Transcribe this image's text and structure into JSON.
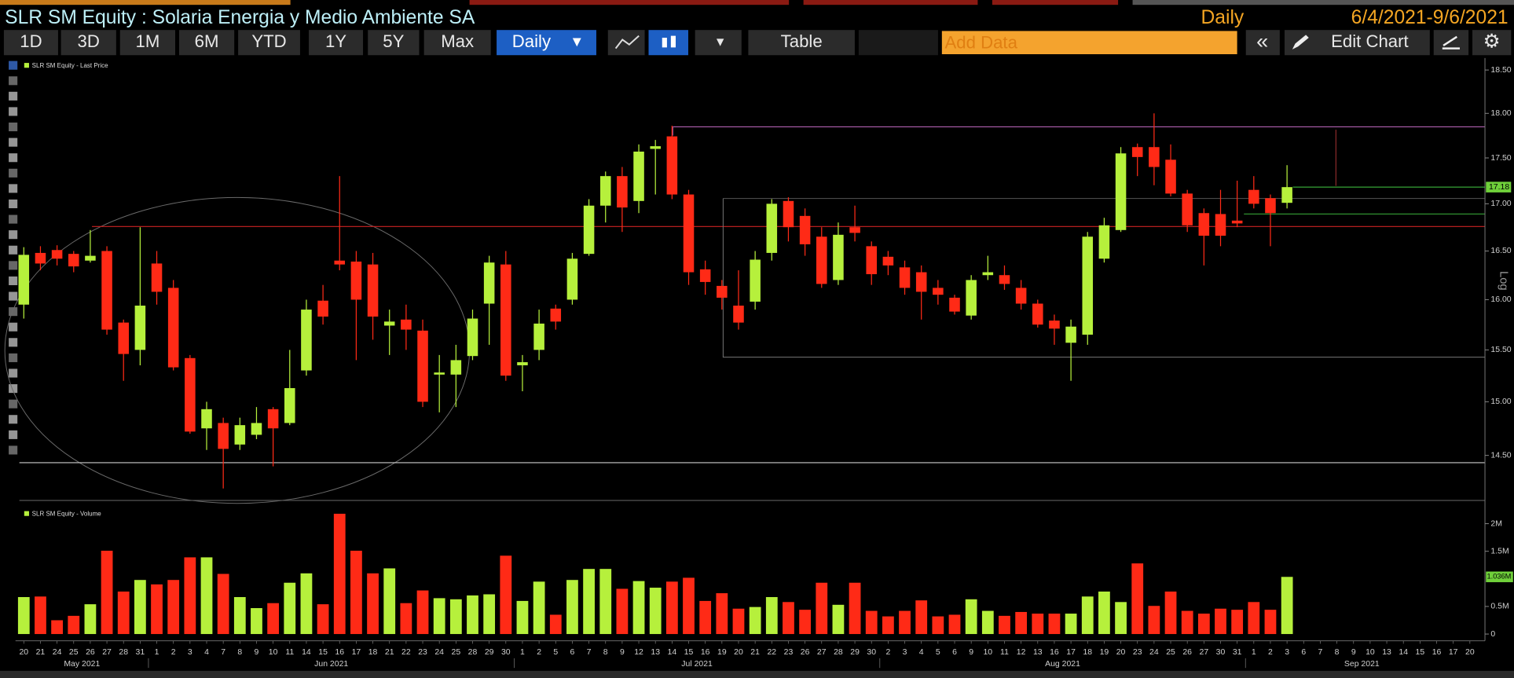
{
  "header": {
    "title": "SLR SM Equity : Solaria Energia y Medio Ambiente SA",
    "frequency": "Daily",
    "range": "6/4/2021-9/6/2021"
  },
  "toolbar": {
    "periods": [
      "1D",
      "3D",
      "1M",
      "6M",
      "YTD",
      "1Y",
      "5Y",
      "Max"
    ],
    "frequency": "Daily",
    "table": "Table",
    "add_data": "Add Data",
    "edit_chart": "Edit Chart"
  },
  "chart_data": [
    {
      "type": "candlestick",
      "legend": "SLR SM Equity - Last Price",
      "ylabel": "Log",
      "log_scale": true,
      "up_color": "#b6f03c",
      "down_color": "#ff2a16",
      "ylim": [
        14.11,
        18.64
      ],
      "yticks": [
        {
          "value": 14.5,
          "label": "14.50"
        },
        {
          "value": 15,
          "label": "15.00"
        },
        {
          "value": 15.5,
          "label": "15.50"
        },
        {
          "value": 16,
          "label": "16.00"
        },
        {
          "value": 16.5,
          "label": "16.50"
        },
        {
          "value": 17,
          "label": "17.00"
        },
        {
          "value": 17.5,
          "label": "17.50"
        },
        {
          "value": 18,
          "label": "18.00"
        },
        {
          "value": 18.5,
          "label": "18.50"
        }
      ],
      "open": [
        15.95,
        16.48,
        16.51,
        16.47,
        16.4,
        16.5,
        15.77,
        15.5,
        16.37,
        16.12,
        15.42,
        14.75,
        14.8,
        14.6,
        14.69,
        14.93,
        14.8,
        15.3,
        15.99,
        16.4,
        16.39,
        16.36,
        15.74,
        15.8,
        15.69,
        15.26,
        15.26,
        15.44,
        15.96,
        16.36,
        15.35,
        15.5,
        15.91,
        16.0,
        16.47,
        16.98,
        17.3,
        17.03,
        17.6,
        17.74,
        17.1,
        16.31,
        16.14,
        15.94,
        15.98,
        16.48,
        17.03,
        16.87,
        16.65,
        16.2,
        16.75,
        16.55,
        16.44,
        16.33,
        16.28,
        16.12,
        16.02,
        15.84,
        16.25,
        16.25,
        16.12,
        15.96,
        15.79,
        15.57,
        15.65,
        16.42,
        16.72,
        17.62,
        17.62,
        17.48,
        17.11,
        16.9,
        16.89,
        16.82,
        17.15,
        17.06,
        17.01
      ],
      "high": [
        16.54,
        16.55,
        16.56,
        16.5,
        16.72,
        16.55,
        15.8,
        16.75,
        16.5,
        16.2,
        15.45,
        15.0,
        14.85,
        14.85,
        14.95,
        14.95,
        15.5,
        16.0,
        16.15,
        17.3,
        16.5,
        16.48,
        15.9,
        15.95,
        15.8,
        15.45,
        15.55,
        15.9,
        16.45,
        16.5,
        15.45,
        15.9,
        15.95,
        16.48,
        17.05,
        17.35,
        17.4,
        17.65,
        17.7,
        17.86,
        17.15,
        16.4,
        16.2,
        16.3,
        16.5,
        17.05,
        17.07,
        16.95,
        16.75,
        16.8,
        16.98,
        16.6,
        16.5,
        16.4,
        16.35,
        16.2,
        16.05,
        16.25,
        16.45,
        16.35,
        16.2,
        16.0,
        15.85,
        15.8,
        16.7,
        16.85,
        17.62,
        17.66,
        18.0,
        17.65,
        17.15,
        16.95,
        17.15,
        17.25,
        17.3,
        17.1,
        17.42
      ],
      "low": [
        15.81,
        16.3,
        16.35,
        16.28,
        16.38,
        15.65,
        15.2,
        15.35,
        15.95,
        15.3,
        14.7,
        14.55,
        14.2,
        14.55,
        14.65,
        14.4,
        14.78,
        15.25,
        15.75,
        16.3,
        15.4,
        15.6,
        15.45,
        15.5,
        14.95,
        14.9,
        14.95,
        15.4,
        15.55,
        15.2,
        15.1,
        15.4,
        15.7,
        15.95,
        16.45,
        16.8,
        16.7,
        16.9,
        17.1,
        17.05,
        16.15,
        16.05,
        15.9,
        15.7,
        15.9,
        16.4,
        16.6,
        16.45,
        16.12,
        16.15,
        16.6,
        16.15,
        16.25,
        16.05,
        15.8,
        15.95,
        15.85,
        15.8,
        16.2,
        16.1,
        15.9,
        15.72,
        15.55,
        15.2,
        15.55,
        16.38,
        16.7,
        17.3,
        17.2,
        17.08,
        16.7,
        16.35,
        16.55,
        16.75,
        16.95,
        16.55,
        16.95
      ],
      "close": [
        16.46,
        16.37,
        16.42,
        16.34,
        16.45,
        15.7,
        15.46,
        15.94,
        16.08,
        15.33,
        14.72,
        14.93,
        14.56,
        14.78,
        14.8,
        14.75,
        15.13,
        15.9,
        15.83,
        16.36,
        16.0,
        15.83,
        15.78,
        15.7,
        15.0,
        15.28,
        15.4,
        15.81,
        16.38,
        15.25,
        15.38,
        15.76,
        15.78,
        16.42,
        16.98,
        17.3,
        16.96,
        17.57,
        17.63,
        17.1,
        16.28,
        16.18,
        16.02,
        15.77,
        16.41,
        17.0,
        16.75,
        16.57,
        16.16,
        16.67,
        16.69,
        16.26,
        16.35,
        16.12,
        16.08,
        16.05,
        15.88,
        16.2,
        16.28,
        16.16,
        15.96,
        15.75,
        15.71,
        15.73,
        16.65,
        16.77,
        17.55,
        17.51,
        17.4,
        17.11,
        16.77,
        16.66,
        16.66,
        16.79,
        17.0,
        16.9,
        17.18
      ],
      "last_label": "17.18"
    },
    {
      "type": "bar",
      "legend": "SLR SM Equity - Volume",
      "ylim": [
        -123000,
        2333000
      ],
      "yticks": [
        0,
        {
          "value": 500000,
          "label": "0.5M"
        },
        {
          "value": 1500000,
          "label": "1.5M"
        },
        {
          "value": 2000000,
          "label": "2M"
        }
      ],
      "values": [
        670000,
        680000,
        250000,
        330000,
        540000,
        1510000,
        770000,
        980000,
        900000,
        980000,
        1390000,
        1390000,
        1090000,
        670000,
        470000,
        560000,
        930000,
        1100000,
        540000,
        2180000,
        1510000,
        1100000,
        1190000,
        560000,
        790000,
        650000,
        630000,
        700000,
        720000,
        1420000,
        600000,
        950000,
        350000,
        980000,
        1180000,
        1180000,
        820000,
        960000,
        840000,
        950000,
        1020000,
        600000,
        740000,
        460000,
        490000,
        670000,
        580000,
        440000,
        930000,
        530000,
        930000,
        420000,
        320000,
        420000,
        610000,
        320000,
        350000,
        630000,
        420000,
        330000,
        400000,
        370000,
        370000,
        370000,
        680000,
        770000,
        580000,
        1280000,
        510000,
        770000,
        420000,
        370000,
        460000,
        440000,
        580000,
        440000,
        1036000
      ],
      "last_label": "1.036M",
      "months": [
        {
          "label": "May 2021",
          "days": [
            "20",
            "21",
            "24",
            "25",
            "26",
            "27",
            "28",
            "31"
          ]
        },
        {
          "label": "Jun 2021",
          "days": [
            "1",
            "2",
            "3",
            "4",
            "7",
            "8",
            "9",
            "10",
            "11",
            "14",
            "15",
            "16",
            "17",
            "18",
            "21",
            "22",
            "23",
            "24",
            "25",
            "28",
            "29",
            "30"
          ]
        },
        {
          "label": "Jul 2021",
          "days": [
            "1",
            "2",
            "5",
            "6",
            "7",
            "8",
            "9",
            "12",
            "13",
            "14",
            "15",
            "16",
            "19",
            "20",
            "21",
            "22",
            "23",
            "26",
            "27",
            "28",
            "29",
            "30"
          ]
        },
        {
          "label": "Aug 2021",
          "days": [
            "2",
            "3",
            "4",
            "5",
            "6",
            "9",
            "10",
            "11",
            "12",
            "13",
            "16",
            "17",
            "18",
            "19",
            "20",
            "23",
            "24",
            "25",
            "26",
            "27",
            "30",
            "31"
          ]
        },
        {
          "label": "Sep 2021",
          "days": [
            "1",
            "2",
            "3",
            "6",
            "7",
            "8",
            "9",
            "10",
            "13",
            "14",
            "15",
            "16",
            "17",
            "20"
          ]
        }
      ]
    }
  ]
}
